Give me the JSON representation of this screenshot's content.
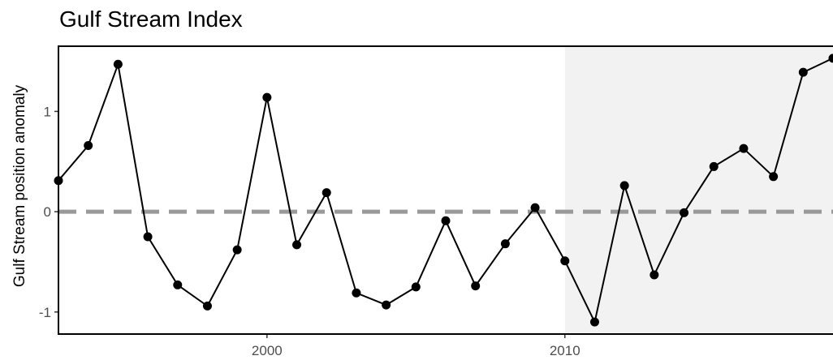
{
  "chart_data": {
    "type": "line",
    "title": "Gulf Stream Index",
    "xlabel": "",
    "ylabel": "Gulf Stream position anomaly",
    "x": [
      1993,
      1994,
      1995,
      1996,
      1997,
      1998,
      1999,
      2000,
      2001,
      2002,
      2003,
      2004,
      2005,
      2006,
      2007,
      2008,
      2009,
      2010,
      2011,
      2012,
      2013,
      2014,
      2015,
      2016,
      2017,
      2018,
      2019
    ],
    "series": [
      {
        "values": [
          0.31,
          0.66,
          1.47,
          -0.25,
          -0.73,
          -0.94,
          -0.38,
          1.14,
          -0.33,
          0.19,
          -0.81,
          -0.93,
          -0.75,
          -0.09,
          -0.74,
          -0.32,
          0.04,
          -0.49,
          -1.1,
          0.26,
          -0.63,
          -0.01,
          0.45,
          0.63,
          0.35,
          1.39,
          1.53
        ]
      }
    ],
    "xticks": [
      2000,
      2010
    ],
    "yticks": [
      -1,
      0,
      1
    ],
    "xlim": [
      1993,
      2019
    ],
    "ylim": [
      -1.22,
      1.65
    ],
    "reference_line": {
      "y": 0,
      "style": "dashed",
      "color": "#999999"
    },
    "shaded_region": {
      "x_start": 2010,
      "x_end": 2019,
      "color": "#f2f2f2"
    },
    "line_color": "#000000",
    "grid": false,
    "legend": "none"
  }
}
